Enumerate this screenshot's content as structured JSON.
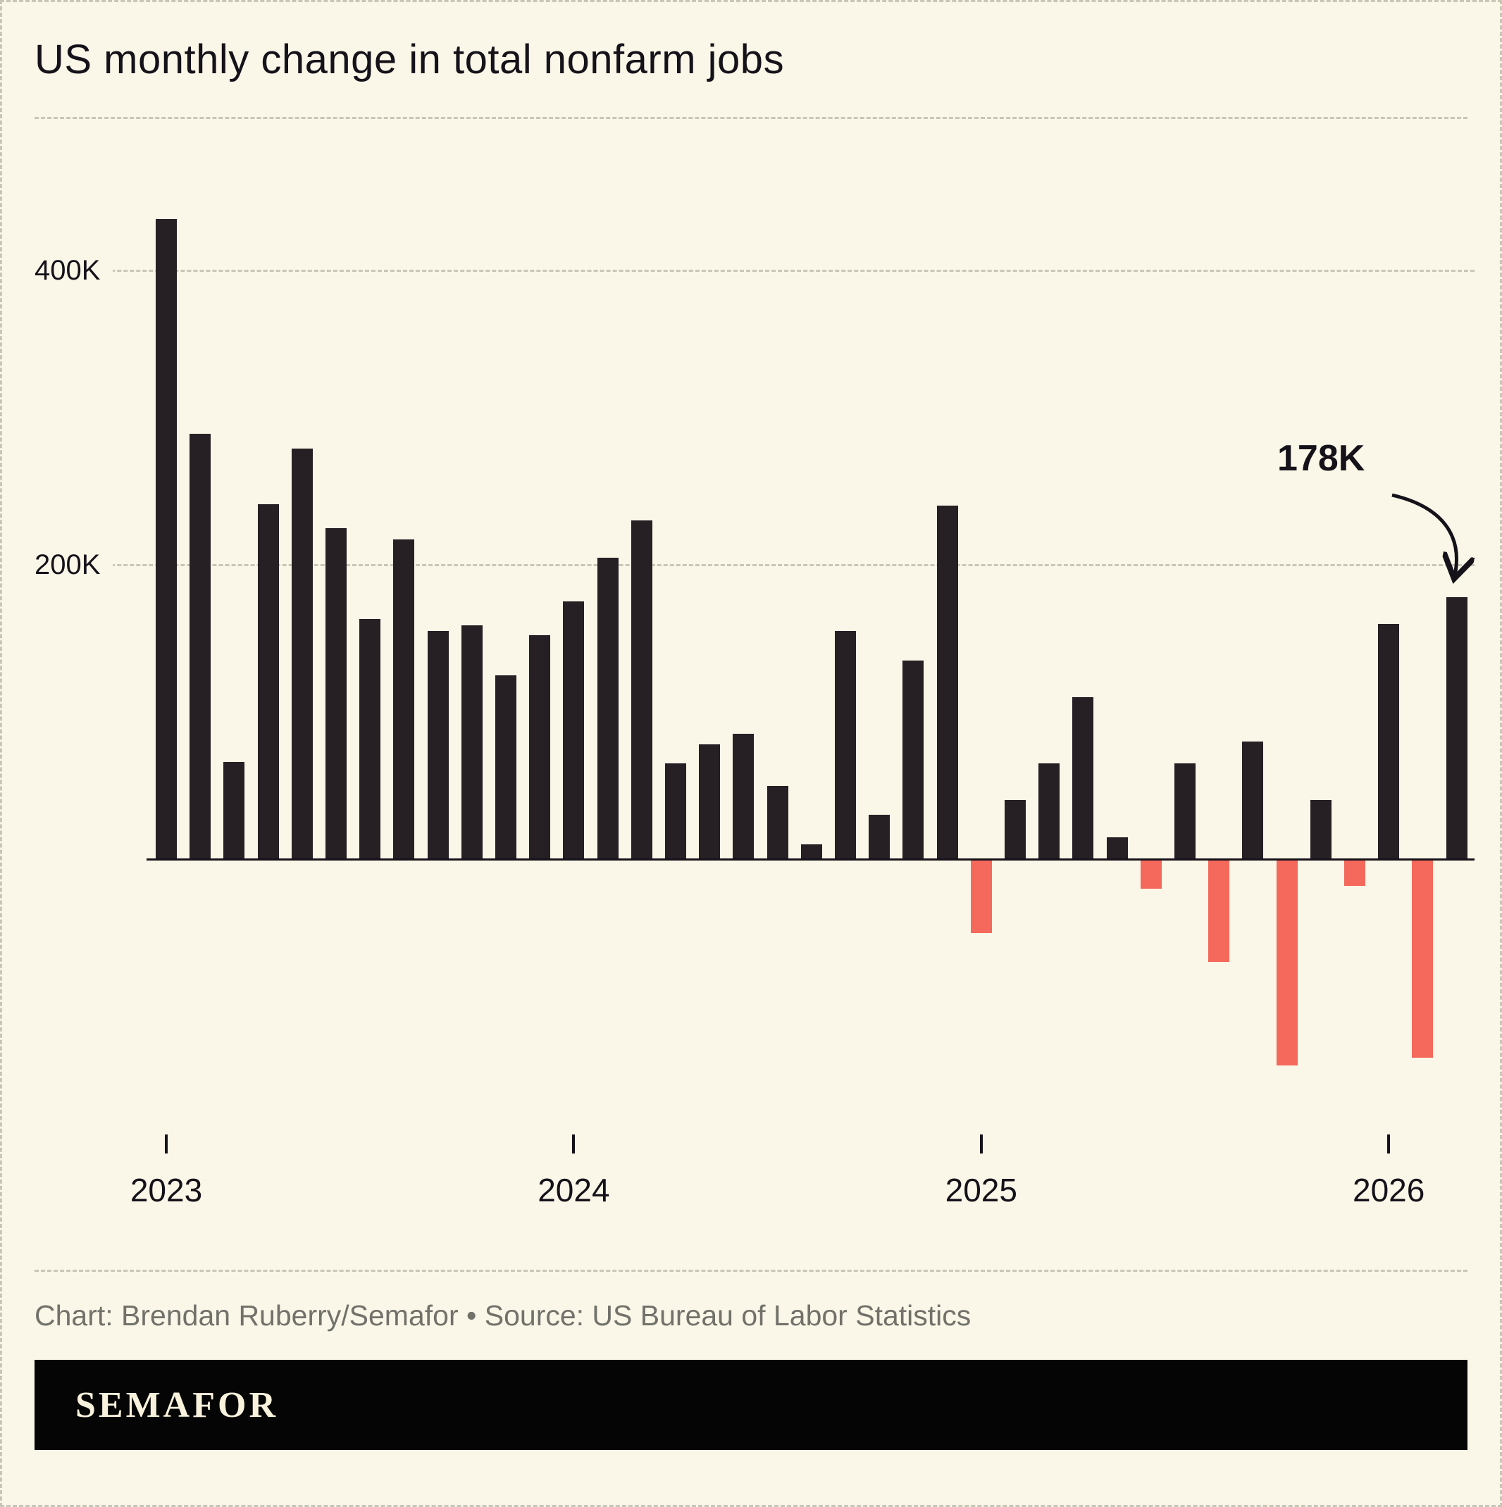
{
  "chart_data": {
    "type": "bar",
    "title": "US monthly change in total nonfarm jobs",
    "unit": "thousands of jobs (K)",
    "ylim": [
      -200,
      460
    ],
    "grid": "horizontal-dashed",
    "legend": "none",
    "bar_color_positive": "#262025",
    "bar_color_negative": "#f4695b",
    "yticks": [
      {
        "value": 200,
        "label": "200K"
      },
      {
        "value": 400,
        "label": "400K"
      }
    ],
    "x": [
      "2023-01",
      "2023-02",
      "2023-03",
      "2023-04",
      "2023-05",
      "2023-06",
      "2023-07",
      "2023-08",
      "2023-09",
      "2023-10",
      "2023-11",
      "2023-12",
      "2024-01",
      "2024-02",
      "2024-03",
      "2024-04",
      "2024-05",
      "2024-06",
      "2024-07",
      "2024-08",
      "2024-09",
      "2024-10",
      "2024-11",
      "2024-12",
      "2025-01",
      "2025-02",
      "2025-03",
      "2025-04",
      "2025-05",
      "2025-06",
      "2025-07",
      "2025-08",
      "2025-09",
      "2025-10",
      "2025-11",
      "2025-12",
      "2026-01",
      "2026-02",
      "2026-03"
    ],
    "values": [
      435,
      289,
      66,
      241,
      279,
      225,
      163,
      217,
      155,
      159,
      125,
      152,
      175,
      205,
      230,
      65,
      78,
      85,
      50,
      10,
      155,
      30,
      135,
      240,
      -50,
      40,
      65,
      110,
      15,
      -20,
      65,
      -70,
      80,
      -140,
      40,
      -18,
      160,
      -135,
      178
    ],
    "year_ticks": [
      {
        "label": "2023",
        "month_index": 0
      },
      {
        "label": "2024",
        "month_index": 12
      },
      {
        "label": "2025",
        "month_index": 24
      },
      {
        "label": "2026",
        "month_index": 36
      }
    ],
    "annotation": {
      "text": "178K",
      "month_index": 38,
      "value": 178
    }
  },
  "footer": {
    "caption": "Chart: Brendan Ruberry/Semafor • Source: US Bureau of Labor Statistics",
    "logo": "SEMAFOR"
  }
}
